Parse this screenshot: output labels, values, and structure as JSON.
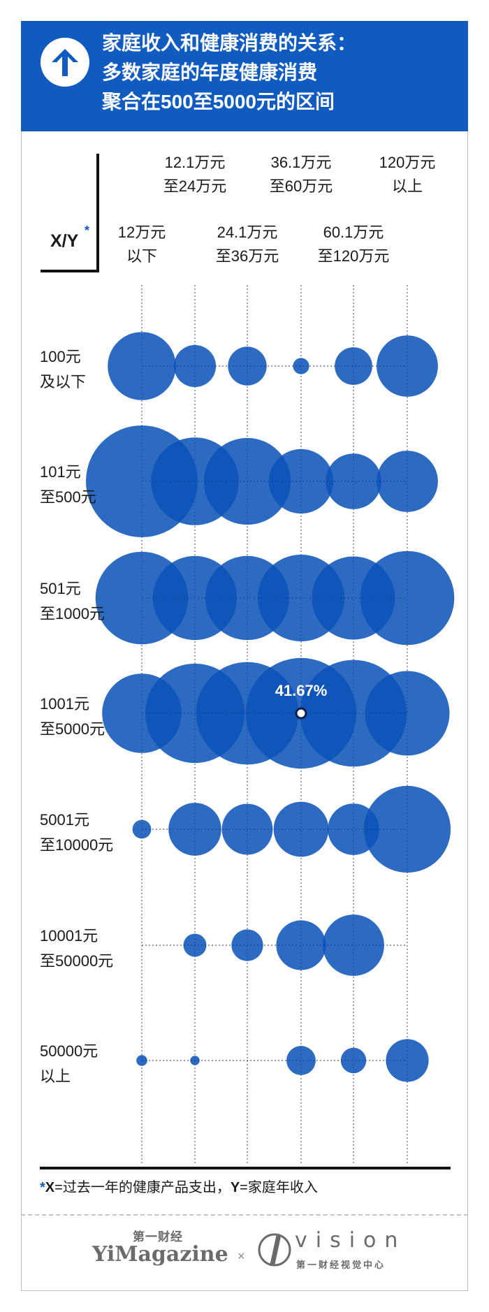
{
  "header": {
    "title_lines": [
      "家庭收入和健康消费的关系：",
      "多数家庭的年度健康消费",
      "聚合在500至5000元的区间"
    ],
    "icon": "arrow-up-icon"
  },
  "colors": {
    "brand_blue": "#0f5bbf",
    "bubble": "#0a52b8",
    "axis": "#111111",
    "muted": "#6b6b6b"
  },
  "chart_data": {
    "type": "bubble",
    "corner_label": "X/Y",
    "corner_star": "*",
    "x_name": "Y（家庭年收入）",
    "y_name": "X（过去一年的健康产品支出）",
    "columns": [
      [
        "12万元",
        "以下"
      ],
      [
        "12.1万元",
        "至24万元"
      ],
      [
        "24.1万元",
        "至36万元"
      ],
      [
        "36.1万元",
        "至60万元"
      ],
      [
        "60.1万元",
        "至120万元"
      ],
      [
        "120万元",
        "以上"
      ]
    ],
    "rows": [
      [
        "100元",
        "及以下"
      ],
      [
        "101元",
        "至500元"
      ],
      [
        "501元",
        "至1000元"
      ],
      [
        "1001元",
        "至5000元"
      ],
      [
        "5001元",
        "至10000元"
      ],
      [
        "10001元",
        "至50000元"
      ],
      [
        "50000元",
        "以上"
      ]
    ],
    "size_unit": "% of income group",
    "values": [
      [
        15.8,
        6.0,
        5.1,
        0.9,
        4.8,
        12.8
      ],
      [
        42.5,
        26.2,
        25.6,
        14.2,
        10.5,
        12.8
      ],
      [
        29.2,
        24.1,
        24.1,
        25.6,
        23.5,
        30.1
      ],
      [
        21.4,
        33.6,
        35.8,
        41.67,
        38.8,
        24.3
      ],
      [
        1.2,
        9.5,
        8.8,
        10.3,
        9.0,
        25.6
      ],
      [
        0,
        1.8,
        3.4,
        8.4,
        12.8,
        0
      ],
      [
        0.4,
        0.3,
        0,
        2.9,
        2.2,
        6.2
      ]
    ],
    "highlight": {
      "row": 3,
      "col": 3,
      "label": "41.67%"
    }
  },
  "footnote": {
    "star": "*",
    "x_key": "X",
    "x_text": "=过去一年的健康产品支出，",
    "y_key": "Y",
    "y_text": "=家庭年收入"
  },
  "footer": {
    "brand_cn": "第一财经",
    "brand_en": "YiMagazine",
    "times": "×",
    "vision_word": "vision",
    "vision_cn": "第一财经视觉中心"
  }
}
